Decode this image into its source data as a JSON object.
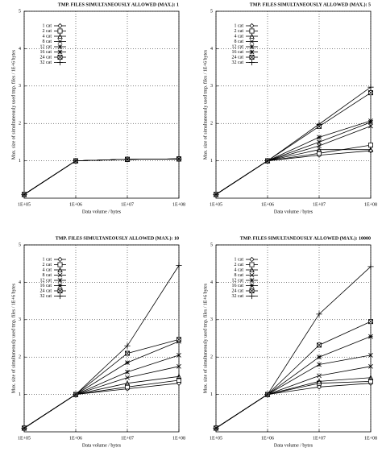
{
  "chart_data": [
    {
      "type": "line",
      "title": "TMP. FILES SIMULTANEOUSLY ALLOWED (MAX.): 1",
      "xlabel": "Data volume / bytes",
      "ylabel": "Max. size of simultaneously used tmp. files / 1E+6 bytes",
      "log_x": true,
      "grid": true,
      "legend": "upper left",
      "x": [
        100000,
        1000000,
        10000000,
        100000000
      ],
      "xlim": [
        100000,
        100000000
      ],
      "xticks": [
        {
          "value": 100000,
          "label": "1E+05"
        },
        {
          "value": 1000000,
          "label": "1E+06"
        },
        {
          "value": 10000000,
          "label": "1E+07"
        },
        {
          "value": 100000000,
          "label": "1E+08"
        }
      ],
      "ylim": [
        0,
        5
      ],
      "yticks": [
        1,
        2,
        3,
        4,
        5
      ],
      "series": [
        {
          "name": "1 cat",
          "color": "#000000",
          "values": [
            0.1,
            1,
            1.04,
            1.05
          ]
        },
        {
          "name": "2 cat",
          "color": "#000000",
          "values": [
            0.1,
            1,
            1.04,
            1.05
          ]
        },
        {
          "name": "4 cat",
          "color": "#000000",
          "values": [
            0.1,
            1,
            1.04,
            1.05
          ]
        },
        {
          "name": "8 cat",
          "color": "#000000",
          "values": [
            0.1,
            1,
            1.04,
            1.05
          ]
        },
        {
          "name": "12 cat",
          "color": "#000000",
          "values": [
            0.1,
            1,
            1.04,
            1.05
          ]
        },
        {
          "name": "16 cat",
          "color": "#000000",
          "values": [
            0.1,
            1,
            1.04,
            1.05
          ]
        },
        {
          "name": "24 cat",
          "color": "#000000",
          "values": [
            0.1,
            1,
            1.04,
            1.05
          ]
        },
        {
          "name": "32 cat",
          "color": "#000000",
          "values": [
            0.1,
            1,
            1.04,
            1.05
          ]
        }
      ]
    },
    {
      "type": "line",
      "title": "TMP. FILES SIMULTANEOUSLY ALLOWED (MAX.): 5",
      "xlabel": "Data volume / bytes",
      "ylabel": "Max. size of simultaneously used tmp. files / 1E+6 bytes",
      "log_x": true,
      "grid": true,
      "legend": "upper left",
      "x": [
        100000,
        1000000,
        10000000,
        100000000
      ],
      "xlim": [
        100000,
        100000000
      ],
      "xticks": [
        {
          "value": 100000,
          "label": "1E+05"
        },
        {
          "value": 1000000,
          "label": "1E+06"
        },
        {
          "value": 10000000,
          "label": "1E+07"
        },
        {
          "value": 100000000,
          "label": "1E+08"
        }
      ],
      "ylim": [
        0,
        5
      ],
      "yticks": [
        1,
        2,
        3,
        4,
        5
      ],
      "series": [
        {
          "name": "1 cat",
          "color": "#000000",
          "values": [
            0.1,
            1,
            1.15,
            1.27
          ]
        },
        {
          "name": "2 cat",
          "color": "#000000",
          "values": [
            0.1,
            1,
            1.2,
            1.42
          ]
        },
        {
          "name": "4 cat",
          "color": "#000000",
          "values": [
            0.1,
            1,
            1.3,
            1.3
          ]
        },
        {
          "name": "8 cat",
          "color": "#000000",
          "values": [
            0.1,
            1,
            1.4,
            1.93
          ]
        },
        {
          "name": "12 cat",
          "color": "#000000",
          "values": [
            0.1,
            1,
            1.5,
            2.03
          ]
        },
        {
          "name": "16 cat",
          "color": "#000000",
          "values": [
            0.1,
            1,
            1.63,
            2.07
          ]
        },
        {
          "name": "24 cat",
          "color": "#000000",
          "values": [
            0.1,
            1,
            1.92,
            2.82
          ]
        },
        {
          "name": "32 cat",
          "color": "#000000",
          "values": [
            0.1,
            1,
            1.98,
            2.97
          ]
        }
      ]
    },
    {
      "type": "line",
      "title": "TMP. FILES SIMULTANEOUSLY ALLOWED (MAX.): 10",
      "xlabel": "Data volume / bytes",
      "ylabel": "Max. size of simultaneously used tmp. files / 1E+6 bytes",
      "log_x": true,
      "grid": true,
      "legend": "upper left",
      "x": [
        100000,
        1000000,
        10000000,
        100000000
      ],
      "xlim": [
        100000,
        100000000
      ],
      "xticks": [
        {
          "value": 100000,
          "label": "1E+05"
        },
        {
          "value": 1000000,
          "label": "1E+06"
        },
        {
          "value": 10000000,
          "label": "1E+07"
        },
        {
          "value": 100000000,
          "label": "1E+08"
        }
      ],
      "ylim": [
        0,
        5
      ],
      "yticks": [
        1,
        2,
        3,
        4,
        5
      ],
      "series": [
        {
          "name": "1 cat",
          "color": "#000000",
          "values": [
            0.1,
            1,
            1.15,
            1.3
          ]
        },
        {
          "name": "2 cat",
          "color": "#000000",
          "values": [
            0.1,
            1,
            1.2,
            1.38
          ]
        },
        {
          "name": "4 cat",
          "color": "#000000",
          "values": [
            0.1,
            1,
            1.3,
            1.48
          ]
        },
        {
          "name": "8 cat",
          "color": "#000000",
          "values": [
            0.1,
            1,
            1.45,
            1.75
          ]
        },
        {
          "name": "12 cat",
          "color": "#000000",
          "values": [
            0.1,
            1,
            1.6,
            2.05
          ]
        },
        {
          "name": "16 cat",
          "color": "#000000",
          "values": [
            0.1,
            1,
            1.85,
            2.42
          ]
        },
        {
          "name": "24 cat",
          "color": "#000000",
          "values": [
            0.1,
            1,
            2.1,
            2.47
          ]
        },
        {
          "name": "32 cat",
          "color": "#000000",
          "values": [
            0.1,
            1,
            2.3,
            4.45
          ]
        }
      ]
    },
    {
      "type": "line",
      "title": "TMP. FILES SIMULTANEOUSLY ALLOWED (MAX.): 10000",
      "xlabel": "Data volume / bytes",
      "ylabel": "Max. size of simultaneously used tmp. files / 1E+6 bytes",
      "log_x": true,
      "grid": true,
      "legend": "upper left",
      "x": [
        100000,
        1000000,
        10000000,
        100000000
      ],
      "xlim": [
        100000,
        100000000
      ],
      "xticks": [
        {
          "value": 100000,
          "label": "1E+05"
        },
        {
          "value": 1000000,
          "label": "1E+06"
        },
        {
          "value": 10000000,
          "label": "1E+07"
        },
        {
          "value": 100000000,
          "label": "1E+08"
        }
      ],
      "ylim": [
        0,
        5
      ],
      "yticks": [
        1,
        2,
        3,
        4,
        5
      ],
      "series": [
        {
          "name": "1 cat",
          "color": "#000000",
          "values": [
            0.1,
            1,
            1.2,
            1.3
          ]
        },
        {
          "name": "2 cat",
          "color": "#000000",
          "values": [
            0.1,
            1,
            1.3,
            1.35
          ]
        },
        {
          "name": "4 cat",
          "color": "#000000",
          "values": [
            0.1,
            1,
            1.35,
            1.45
          ]
        },
        {
          "name": "8 cat",
          "color": "#000000",
          "values": [
            0.1,
            1,
            1.5,
            1.75
          ]
        },
        {
          "name": "12 cat",
          "color": "#000000",
          "values": [
            0.1,
            1,
            1.8,
            2.05
          ]
        },
        {
          "name": "16 cat",
          "color": "#000000",
          "values": [
            0.1,
            1,
            2.0,
            2.55
          ]
        },
        {
          "name": "24 cat",
          "color": "#000000",
          "values": [
            0.1,
            1,
            2.32,
            2.95
          ]
        },
        {
          "name": "32 cat",
          "color": "#000000",
          "values": [
            0.1,
            1,
            3.15,
            4.42
          ]
        }
      ]
    }
  ]
}
